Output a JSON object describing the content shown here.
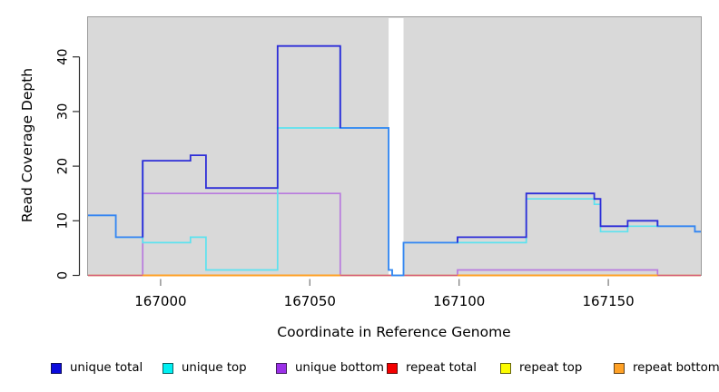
{
  "figure": {
    "description": "Read coverage depth step plot",
    "background": "#ffffff"
  },
  "chart_data": {
    "type": "line",
    "step": true,
    "title": "",
    "xlabel": "Coordinate in Reference Genome",
    "ylabel": "Read Coverage Depth",
    "x_ticks": [
      167000,
      167050,
      167100,
      167150
    ],
    "y_ticks": [
      0,
      10,
      20,
      30,
      40
    ],
    "xlim": [
      166975.7,
      167181
    ],
    "ylim": [
      0,
      47.3
    ],
    "grid": false,
    "plot_bg": "#d9d9d9",
    "plot_border": "#9a9a9a",
    "gap_region": {
      "from": 167076.4,
      "to": 167081.4,
      "fill": "#ffffff"
    },
    "series": [
      {
        "name": "unique total",
        "color": "#2d2dd8",
        "overlap_color": "#3585f2",
        "x_end": 167181,
        "steps": [
          [
            166975.7,
            11
          ],
          [
            166985,
            7
          ],
          [
            166994,
            21
          ],
          [
            167010,
            22
          ],
          [
            167015.2,
            16
          ],
          [
            167039.2,
            42
          ],
          [
            167060.2,
            27
          ],
          [
            167076.4,
            1
          ],
          [
            167077.6,
            0
          ],
          [
            167081.4,
            6
          ],
          [
            167099.5,
            7
          ],
          [
            167122.5,
            15
          ],
          [
            167145.3,
            14
          ],
          [
            167147.4,
            9
          ],
          [
            167156.5,
            10
          ],
          [
            167166.5,
            9
          ],
          [
            167179,
            8
          ]
        ]
      },
      {
        "name": "unique top",
        "color": "#5ce2ef",
        "x_end": 167181,
        "steps": [
          [
            166975.7,
            11
          ],
          [
            166985,
            7
          ],
          [
            166994,
            6
          ],
          [
            167010,
            7
          ],
          [
            167015.2,
            1
          ],
          [
            167039.2,
            27
          ],
          [
            167076.4,
            1
          ],
          [
            167077.6,
            0
          ],
          [
            167081.4,
            6
          ],
          [
            167122.5,
            14
          ],
          [
            167145.3,
            13
          ],
          [
            167147.4,
            8
          ],
          [
            167156.5,
            9
          ],
          [
            167179,
            8
          ]
        ]
      },
      {
        "name": "unique bottom",
        "color": "#b87ade",
        "x_end": 167181,
        "steps": [
          [
            166975.7,
            0
          ],
          [
            166994,
            15
          ],
          [
            167060.2,
            0
          ],
          [
            167099.5,
            1
          ],
          [
            167166.5,
            0
          ]
        ]
      },
      {
        "name": "repeat total",
        "color": "#d75d79",
        "x_end": 167181,
        "steps": [
          [
            166975.7,
            0
          ]
        ]
      },
      {
        "name": "repeat top",
        "color": "#f5f500",
        "x_end": 167181,
        "steps": [
          [
            166975.7,
            0
          ]
        ]
      },
      {
        "name": "repeat bottom",
        "color": "#ffa126",
        "x_end": 167181,
        "steps": [
          [
            166975.7,
            0
          ]
        ],
        "visible_ranges": [
          [
            166994,
            167060.2
          ],
          [
            167099.5,
            167166.5
          ]
        ]
      }
    ]
  },
  "legend": {
    "items": [
      {
        "label": "unique total",
        "color": "#0b0bdd"
      },
      {
        "label": "unique top",
        "color": "#00f0f2"
      },
      {
        "label": "unique bottom",
        "color": "#9b30e8"
      },
      {
        "label": "repeat total",
        "color": "#f40000"
      },
      {
        "label": "repeat top",
        "color": "#fcfc00"
      },
      {
        "label": "repeat bottom",
        "color": "#ffa126"
      }
    ]
  }
}
